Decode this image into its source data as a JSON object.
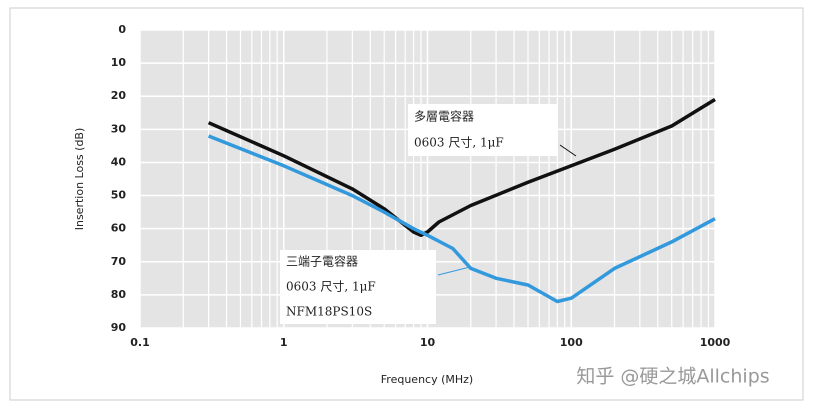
{
  "chart_data": {
    "type": "line",
    "x_label": "Frequency (MHz)",
    "y_label": "Insertion Loss (dB)",
    "xlim": [
      0.1,
      1000
    ],
    "x_log": true,
    "xticks": [
      0.1,
      1,
      10,
      100,
      1000
    ],
    "minor_xticks": [
      0.2,
      0.3,
      0.4,
      0.5,
      0.6,
      0.7,
      0.8,
      0.9,
      2,
      3,
      4,
      5,
      6,
      7,
      8,
      9,
      20,
      30,
      40,
      50,
      60,
      70,
      80,
      90,
      200,
      300,
      400,
      500,
      600,
      700,
      800,
      900
    ],
    "ylim": [
      0,
      90
    ],
    "y_inverted": true,
    "yticks": [
      0,
      10,
      20,
      30,
      40,
      50,
      60,
      70,
      80,
      90
    ],
    "grid": true,
    "series": [
      {
        "color": "#111111",
        "x": [
          0.3,
          1,
          3,
          5,
          8,
          9,
          10,
          12,
          20,
          50,
          100,
          200,
          500,
          1000
        ],
        "values": [
          28,
          38,
          48,
          54,
          61,
          62,
          61,
          58,
          53,
          46,
          41,
          36,
          29,
          21
        ]
      },
      {
        "color": "#3399dd",
        "x": [
          0.3,
          1,
          3,
          5,
          8,
          10,
          15,
          20,
          30,
          50,
          80,
          100,
          200,
          500,
          1000
        ],
        "values": [
          32,
          41,
          50,
          55,
          60,
          62,
          66,
          72,
          75,
          77,
          82,
          81,
          72,
          64,
          57
        ]
      }
    ],
    "annotations": [
      {
        "lines": [
          "多層電容器",
          "0603 尺寸, 1μF"
        ]
      },
      {
        "lines": [
          "三端子電容器",
          "0603 尺寸, 1μF",
          "NFM18PS10S"
        ]
      }
    ],
    "watermark": "知乎 @硬之城Allchips"
  }
}
